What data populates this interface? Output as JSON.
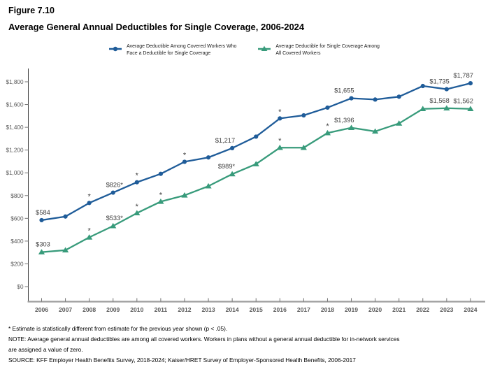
{
  "chart_data": {
    "type": "line",
    "figure_label": "Figure 7.10",
    "title": "Average General Annual Deductibles for Single Coverage, 2006-2024",
    "xlabel": "",
    "ylabel": "",
    "categories": [
      "2006",
      "2007",
      "2008",
      "2009",
      "2010",
      "2011",
      "2012",
      "2013",
      "2014",
      "2015",
      "2016",
      "2017",
      "2018",
      "2019",
      "2020",
      "2021",
      "2022",
      "2023",
      "2024"
    ],
    "ylim": [
      0,
      1800
    ],
    "ytick_interval": 200,
    "ytick_labels": [
      "$0",
      "$200",
      "$400",
      "$600",
      "$800",
      "$1,000",
      "$1,200",
      "$1,400",
      "$1,600",
      "$1,800"
    ],
    "grid": false,
    "legend_position": "top",
    "series": [
      {
        "name": "Average Deductible Among Covered Workers Who Face a Deductible for Single Coverage",
        "color": "#1F5C99",
        "marker": "circle",
        "values": [
          584,
          616,
          735,
          826,
          917,
          991,
          1097,
          1135,
          1217,
          1318,
          1478,
          1505,
          1573,
          1655,
          1644,
          1669,
          1763,
          1735,
          1787
        ],
        "point_labels": {
          "2006": "$584",
          "2009": "$826*",
          "2014": "$1,217",
          "2019": "$1,655",
          "2023": "$1,735",
          "2024": "$1,787"
        },
        "asterisk_years": [
          "2008",
          "2010",
          "2012",
          "2016"
        ]
      },
      {
        "name": "Average Deductible for Single Coverage Among All Covered Workers",
        "color": "#389B7B",
        "marker": "triangle",
        "values": [
          303,
          320,
          433,
          533,
          646,
          747,
          802,
          883,
          989,
          1077,
          1221,
          1221,
          1350,
          1396,
          1364,
          1434,
          1562,
          1568,
          1562
        ],
        "point_labels": {
          "2006": "$303",
          "2009": "$533*",
          "2014": "$989*",
          "2019": "$1,396",
          "2023": "$1,568",
          "2024": "$1,562"
        },
        "asterisk_years": [
          "2008",
          "2010",
          "2011",
          "2016",
          "2018"
        ]
      }
    ]
  },
  "legend": {
    "entries": [
      {
        "lines": [
          "Average Deductible Among Covered Workers Who",
          "Face a Deductible for Single Coverage"
        ],
        "marker": "circle",
        "color": "#1F5C99"
      },
      {
        "lines": [
          "Average Deductible for Single Coverage Among",
          "All Covered Workers"
        ],
        "marker": "triangle",
        "color": "#389B7B"
      }
    ]
  },
  "footnotes": [
    "* Estimate is statistically different from estimate for the previous year shown (p < .05).",
    "NOTE: Average general annual deductibles are among all covered workers. Workers in plans without a general annual deductible for in-network services",
    "are assigned a value of zero.",
    "SOURCE: KFF Employer Health Benefits Survey, 2018-2024; Kaiser/HRET Survey of Employer-Sponsored Health Benefits, 2006-2017"
  ]
}
